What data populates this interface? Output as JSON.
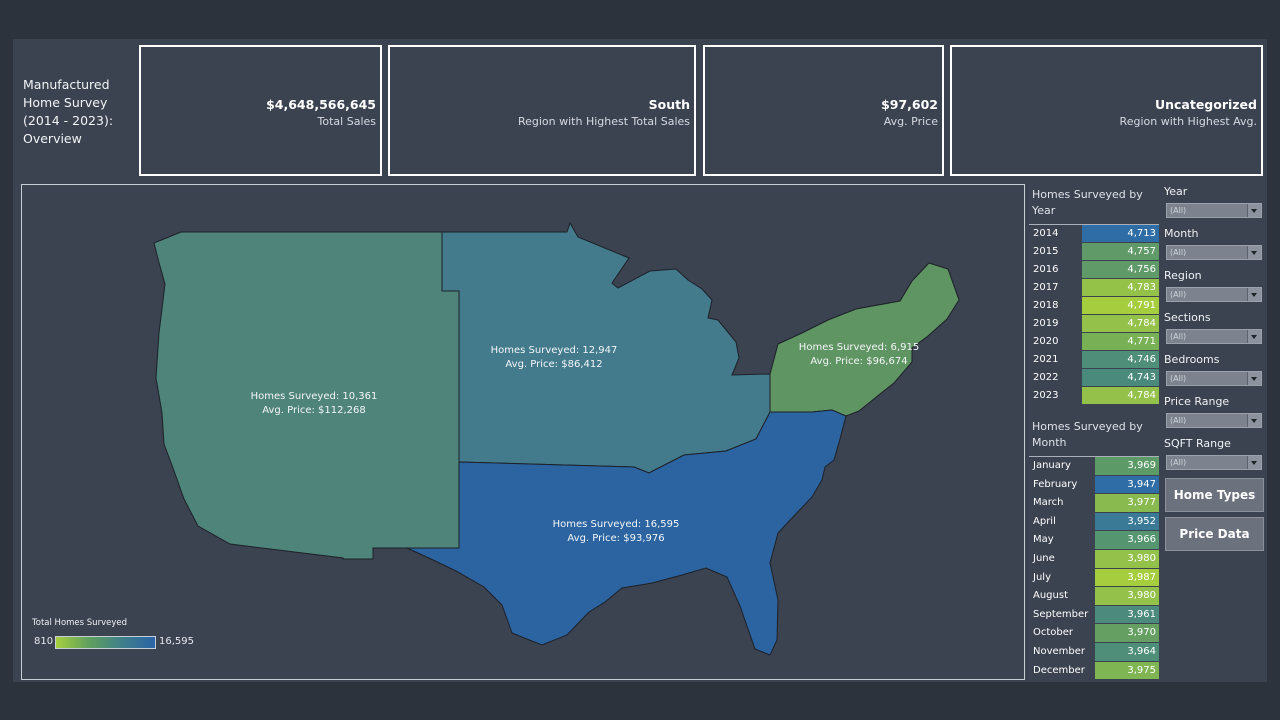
{
  "title": [
    "Manufactured",
    "Home Survey",
    "(2014 - 2023):",
    "Overview"
  ],
  "kpis": [
    {
      "value": "$4,648,566,645",
      "label": "Total Sales"
    },
    {
      "value": "South",
      "label": "Region with Highest Total Sales"
    },
    {
      "value": "$97,602",
      "label": "Avg. Price"
    },
    {
      "value": "Uncategorized",
      "label": "Region with Highest Avg."
    }
  ],
  "map": {
    "regions": [
      {
        "name": "west",
        "homes": "Homes Surveyed: 10,361",
        "price": "Avg. Price: $112,268",
        "color": "#4f847a"
      },
      {
        "name": "midwest",
        "homes": "Homes Surveyed: 12,947",
        "price": "Avg. Price: $86,412",
        "color": "#437b8d"
      },
      {
        "name": "northeast",
        "homes": "Homes Surveyed: 6,915",
        "price": "Avg. Price: $96,674",
        "color": "#5f9463"
      },
      {
        "name": "south",
        "homes": "Homes Surveyed: 16,595",
        "price": "Avg. Price: $93,976",
        "color": "#2b64a0"
      }
    ],
    "legend": {
      "title": "Total Homes Surveyed",
      "min": "810",
      "max": "16,595"
    }
  },
  "by_year": {
    "title": "Homes Surveyed by Year",
    "rows": [
      {
        "k": "2014",
        "v": "4,713",
        "color": "#2e6da6"
      },
      {
        "k": "2015",
        "v": "4,757",
        "color": "#5f9a68"
      },
      {
        "k": "2016",
        "v": "4,756",
        "color": "#5f9a68"
      },
      {
        "k": "2017",
        "v": "4,783",
        "color": "#94c249"
      },
      {
        "k": "2018",
        "v": "4,791",
        "color": "#a6cd3e"
      },
      {
        "k": "2019",
        "v": "4,784",
        "color": "#93c14a"
      },
      {
        "k": "2020",
        "v": "4,771",
        "color": "#78b055"
      },
      {
        "k": "2021",
        "v": "4,746",
        "color": "#4f8e78"
      },
      {
        "k": "2022",
        "v": "4,743",
        "color": "#4a8a7d"
      },
      {
        "k": "2023",
        "v": "4,784",
        "color": "#93c14a"
      }
    ]
  },
  "by_month": {
    "title": "Homes Surveyed by Month",
    "rows": [
      {
        "k": "January",
        "v": "3,969",
        "color": "#5c9a67"
      },
      {
        "k": "February",
        "v": "3,947",
        "color": "#2e6da6"
      },
      {
        "k": "March",
        "v": "3,977",
        "color": "#88ba4f"
      },
      {
        "k": "April",
        "v": "3,952",
        "color": "#3b7a96"
      },
      {
        "k": "May",
        "v": "3,966",
        "color": "#559570"
      },
      {
        "k": "June",
        "v": "3,980",
        "color": "#93c14a"
      },
      {
        "k": "July",
        "v": "3,987",
        "color": "#a6cd3e"
      },
      {
        "k": "August",
        "v": "3,980",
        "color": "#93c14a"
      },
      {
        "k": "September",
        "v": "3,961",
        "color": "#4b8a7d"
      },
      {
        "k": "October",
        "v": "3,970",
        "color": "#65a062"
      },
      {
        "k": "November",
        "v": "3,964",
        "color": "#4f8e78"
      },
      {
        "k": "December",
        "v": "3,975",
        "color": "#7fb552"
      }
    ]
  },
  "filters": [
    {
      "label": "Year",
      "value": "(All)"
    },
    {
      "label": "Month",
      "value": "(All)"
    },
    {
      "label": "Region",
      "value": "(All)"
    },
    {
      "label": "Sections",
      "value": "(All)"
    },
    {
      "label": "Bedrooms",
      "value": "(All)"
    },
    {
      "label": "Price Range",
      "value": "(All)"
    },
    {
      "label": "SQFT Range",
      "value": "(All)"
    }
  ],
  "buttons": {
    "home_types": "Home Types",
    "price_data": "Price Data"
  }
}
